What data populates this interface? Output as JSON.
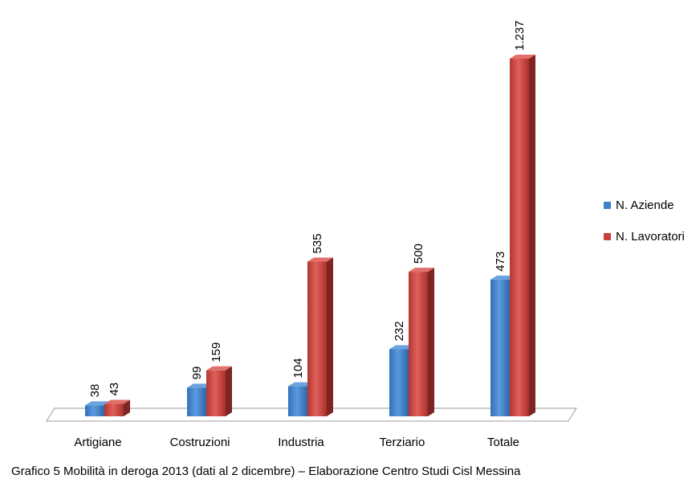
{
  "chart_data": {
    "type": "bar",
    "categories": [
      "Artigiane",
      "Costruzioni",
      "Industria",
      "Terziario",
      "Totale"
    ],
    "series": [
      {
        "name": "N. Aziende",
        "values": [
          38,
          99,
          104,
          232,
          473
        ],
        "labels": [
          "38",
          "99",
          "104",
          "232",
          "473"
        ],
        "color": "#3f7fc4"
      },
      {
        "name": "N. Lavoratori",
        "values": [
          43,
          159,
          535,
          500,
          1237
        ],
        "labels": [
          "43",
          "159",
          "535",
          "500",
          "1.237"
        ],
        "color": "#c9413d"
      }
    ],
    "legend_position": "right",
    "grid": false,
    "ylim": [
      0,
      1237
    ]
  },
  "caption": "Grafico 5 Mobilità in deroga 2013 (dati al 2 dicembre) – Elaborazione Centro Studi Cisl Messina"
}
